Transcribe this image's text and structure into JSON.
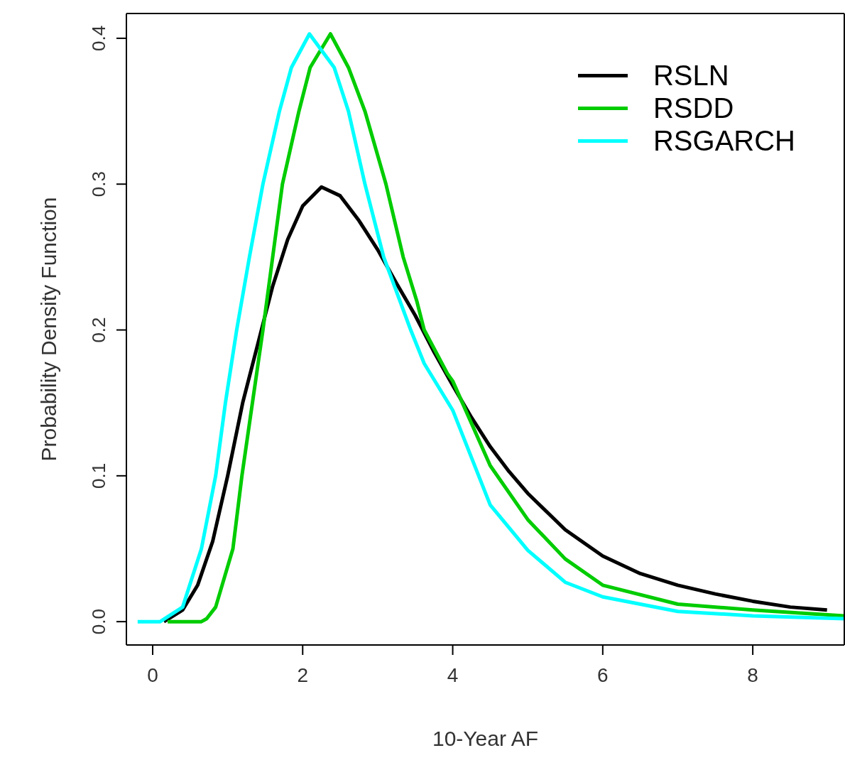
{
  "chart_data": {
    "type": "line",
    "xlabel": "10-Year AF",
    "ylabel": "Probability Density Function",
    "xlim": [
      -0.35,
      9.22
    ],
    "ylim": [
      -0.016,
      0.417
    ],
    "xticks": [
      0,
      2,
      4,
      6,
      8
    ],
    "yticks": [
      {
        "value": 0,
        "label": "0.0"
      },
      0.1,
      0.2,
      0.3,
      0.4
    ],
    "grid": false,
    "legend": "top right",
    "marker": "none",
    "line_style": "solid",
    "series": [
      {
        "name": "RSLN",
        "color": "#000000",
        "x": [
          0.15,
          0.4,
          0.6,
          0.8,
          1.0,
          1.2,
          1.4,
          1.6,
          1.8,
          2.0,
          2.25,
          2.5,
          2.75,
          3.0,
          3.25,
          3.5,
          3.75,
          4.0,
          4.25,
          4.5,
          4.75,
          5.0,
          5.5,
          6.0,
          6.5,
          7.0,
          7.5,
          8.0,
          8.5,
          8.99
        ],
        "values": [
          0,
          0.008,
          0.025,
          0.055,
          0.1,
          0.15,
          0.19,
          0.23,
          0.262,
          0.285,
          0.298,
          0.292,
          0.275,
          0.255,
          0.232,
          0.21,
          0.185,
          0.162,
          0.14,
          0.12,
          0.103,
          0.088,
          0.063,
          0.045,
          0.033,
          0.025,
          0.019,
          0.014,
          0.01,
          0.008
        ]
      },
      {
        "name": "RSDD",
        "color": "#00cc00",
        "x": [
          0.2,
          0.65,
          0.72,
          0.84,
          1.07,
          1.19,
          1.33,
          1.47,
          1.73,
          1.95,
          2.1,
          2.37,
          2.61,
          2.83,
          3.11,
          3.34,
          3.52,
          3.62,
          3.93,
          4.0,
          4.5,
          5.0,
          5.5,
          6.0,
          7.0,
          8.0,
          9.22
        ],
        "values": [
          0,
          0,
          0.002,
          0.01,
          0.05,
          0.1,
          0.15,
          0.2,
          0.3,
          0.35,
          0.38,
          0.403,
          0.38,
          0.35,
          0.3,
          0.25,
          0.22,
          0.2,
          0.17,
          0.165,
          0.107,
          0.07,
          0.043,
          0.025,
          0.012,
          0.008,
          0.004
        ]
      },
      {
        "name": "RSGARCH",
        "color": "#00ffff",
        "x": [
          -0.2,
          0.1,
          0.4,
          0.65,
          0.84,
          0.97,
          1.12,
          1.29,
          1.47,
          1.69,
          1.85,
          2.09,
          2.42,
          2.61,
          2.83,
          3.08,
          3.44,
          3.62,
          4.0,
          4.5,
          5.0,
          5.5,
          6.0,
          7.0,
          8.0,
          9.22
        ],
        "values": [
          0,
          0,
          0.01,
          0.05,
          0.1,
          0.15,
          0.2,
          0.25,
          0.3,
          0.35,
          0.38,
          0.403,
          0.38,
          0.35,
          0.3,
          0.25,
          0.2,
          0.177,
          0.145,
          0.08,
          0.049,
          0.027,
          0.017,
          0.007,
          0.004,
          0.002
        ]
      }
    ]
  }
}
